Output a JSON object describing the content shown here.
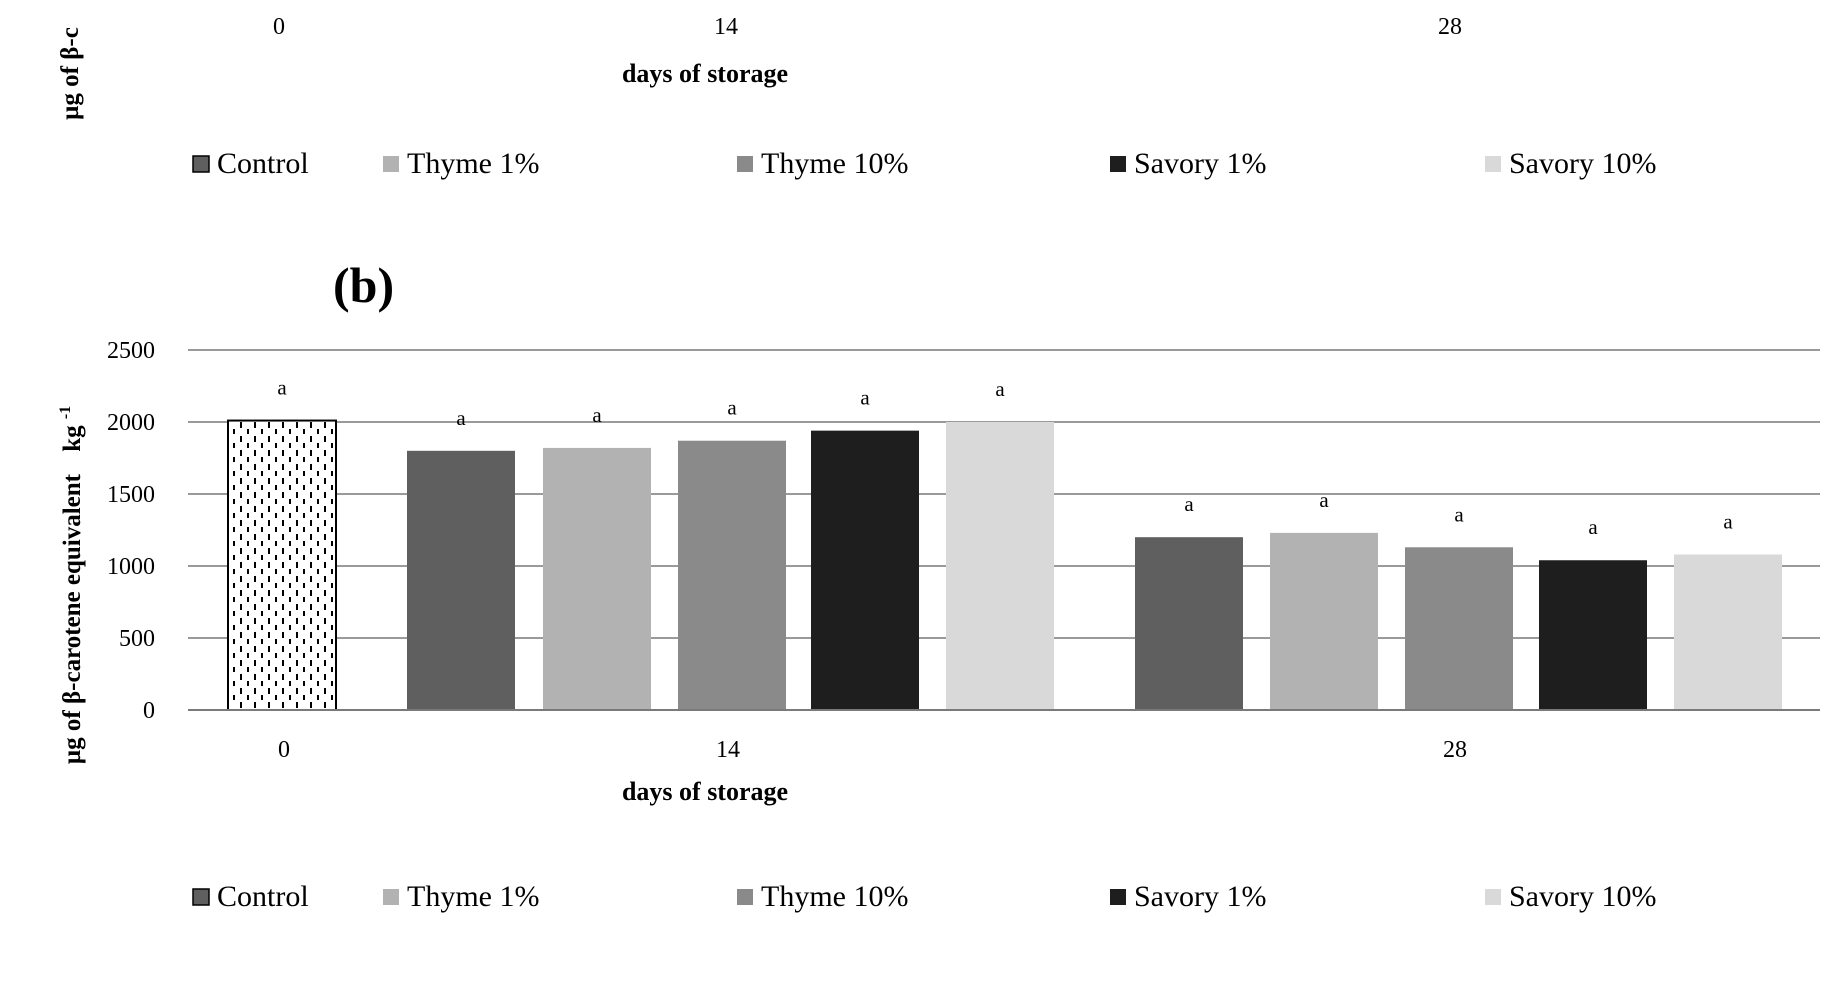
{
  "top_fragment": {
    "ylabel_fragment": "µg of β-c",
    "x_ticks": [
      "0",
      "14",
      "28"
    ],
    "xlabel": "days of storage",
    "legend": [
      "Control",
      "Thyme 1%",
      "Thyme 10%",
      "Savory 1%",
      "Savory 10%"
    ]
  },
  "chart_data": {
    "type": "bar",
    "panel_label": "(b)",
    "xlabel": "days of storage",
    "ylabel_main": "µg of β-carotene equivalent",
    "ylabel_unit": "kg",
    "ylabel_exp": "-1",
    "ylim": [
      0,
      2500
    ],
    "yticks": [
      0,
      500,
      1000,
      1500,
      2000,
      2500
    ],
    "grid": true,
    "legend_position": "bottom",
    "legend": [
      "Control",
      "Thyme 1%",
      "Thyme 10%",
      "Savory 1%",
      "Savory 10%"
    ],
    "colors": {
      "Control": "#5f5f5f",
      "Thyme 1%": "#b2b2b2",
      "Thyme 10%": "#8a8a8a",
      "Savory 1%": "#1e1e1e",
      "Savory 10%": "#d9d9d9",
      "day0": "#ffffff"
    },
    "groups": [
      {
        "day": "0",
        "bars": [
          {
            "series": "Day 0",
            "value": 2010,
            "label": "a",
            "pattern": "dots"
          }
        ]
      },
      {
        "day": "14",
        "bars": [
          {
            "series": "Control",
            "value": 1800,
            "label": "a"
          },
          {
            "series": "Thyme 1%",
            "value": 1820,
            "label": "a"
          },
          {
            "series": "Thyme 10%",
            "value": 1870,
            "label": "a"
          },
          {
            "series": "Savory 1%",
            "value": 1940,
            "label": "a"
          },
          {
            "series": "Savory 10%",
            "value": 2000,
            "label": "a"
          }
        ]
      },
      {
        "day": "28",
        "bars": [
          {
            "series": "Control",
            "value": 1200,
            "label": "a"
          },
          {
            "series": "Thyme 1%",
            "value": 1230,
            "label": "a"
          },
          {
            "series": "Thyme 10%",
            "value": 1130,
            "label": "a"
          },
          {
            "series": "Savory 1%",
            "value": 1040,
            "label": "a"
          },
          {
            "series": "Savory 10%",
            "value": 1080,
            "label": "a"
          }
        ]
      }
    ]
  }
}
